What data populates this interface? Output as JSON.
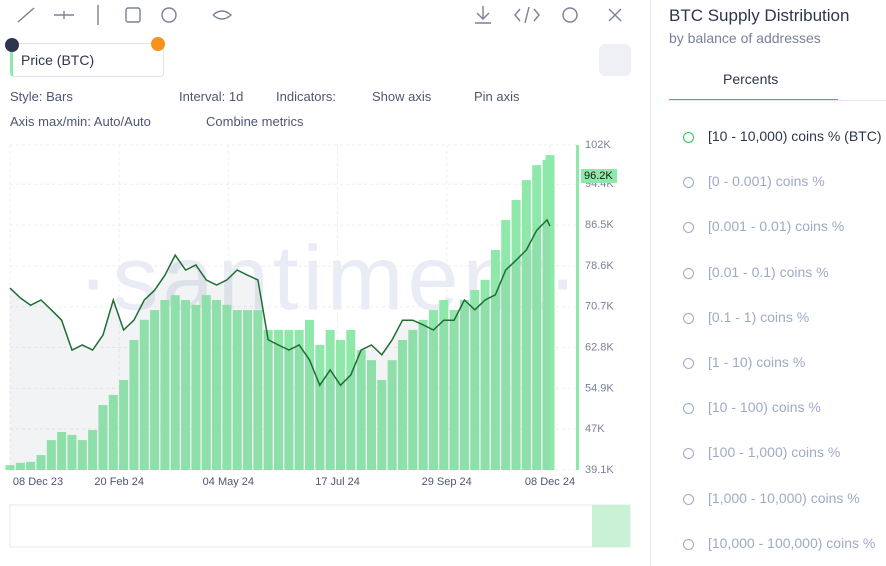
{
  "panel": {
    "metric_title": "Price (BTC)",
    "controls": {
      "style": "Style: Bars",
      "interval": "Interval: 1d",
      "indicators": "Indicators:",
      "show_axis": "Show axis",
      "pin_axis": "Pin axis",
      "axis_minmax": "Axis max/min: Auto/Auto",
      "combine": "Combine metrics"
    }
  },
  "sidebar": {
    "title": "BTC Supply Distribution",
    "subtitle": "by balance of addresses",
    "tab": "Percents",
    "items": [
      "[10 - 10,000) coins % (BTC)",
      "[0 - 0.001) coins %",
      "[0.001 - 0.01) coins %",
      "[0.01 - 0.1) coins %",
      "[0.1 - 1) coins %",
      "[1 - 10) coins %",
      "[10 - 100) coins %",
      "[100 - 1,000) coins %",
      "[1,000 - 10,000) coins %",
      "[10,000 - 100,000) coins %"
    ]
  },
  "chart_data": {
    "type": "combo",
    "watermark": "·santiment·",
    "value_tag": "96.2K",
    "x": [
      "08 Dec 23",
      "15 Dec 23",
      "22 Dec 23",
      "29 Dec 23",
      "05 Jan 24",
      "12 Jan 24",
      "19 Jan 24",
      "26 Jan 24",
      "02 Feb 24",
      "09 Feb 24",
      "16 Feb 24",
      "23 Feb 24",
      "01 Mar 24",
      "08 Mar 24",
      "15 Mar 24",
      "22 Mar 24",
      "29 Mar 24",
      "05 Apr 24",
      "12 Apr 24",
      "19 Apr 24",
      "26 Apr 24",
      "03 May 24",
      "10 May 24",
      "17 May 24",
      "24 May 24",
      "31 May 24",
      "07 Jun 24",
      "14 Jun 24",
      "21 Jun 24",
      "28 Jun 24",
      "05 Jul 24",
      "12 Jul 24",
      "19 Jul 24",
      "26 Jul 24",
      "02 Aug 24",
      "09 Aug 24",
      "16 Aug 24",
      "23 Aug 24",
      "30 Aug 24",
      "06 Sep 24",
      "13 Sep 24",
      "20 Sep 24",
      "27 Sep 24",
      "04 Oct 24",
      "11 Oct 24",
      "18 Oct 24",
      "25 Oct 24",
      "01 Nov 24",
      "08 Nov 24",
      "15 Nov 24",
      "22 Nov 24",
      "29 Nov 24",
      "06 Dec 24",
      "08 Dec 24"
    ],
    "xlim": [
      "08 Dec 23",
      "08 Dec 24"
    ],
    "xticks": [
      "08 Dec 23",
      "20 Feb 24",
      "04 May 24",
      "17 Jul 24",
      "29 Sep 24",
      "08 Dec 24"
    ],
    "series": [
      {
        "name": "[10 - 10,000) coins % (BTC)",
        "type": "bar",
        "axis": "y2",
        "color": "#8ee8a9",
        "values": [
          1.5,
          2.2,
          2.5,
          4.6,
          9.2,
          11.7,
          10.8,
          9.2,
          12.3,
          20,
          23.1,
          27.7,
          40,
          46.2,
          49.2,
          52.3,
          53.8,
          52.3,
          50.8,
          53.8,
          52.3,
          50.8,
          49.2,
          49.2,
          49.2,
          43.1,
          43.1,
          43.1,
          43.1,
          46.2,
          38.5,
          43.1,
          40,
          43.1,
          36.9,
          33.8,
          27.7,
          33.8,
          40,
          43.1,
          46.2,
          49.2,
          52.3,
          49.2,
          52.3,
          55.4,
          58.5,
          67.7,
          76.9,
          83.1,
          89.2,
          93.8,
          95.4,
          96.9
        ]
      },
      {
        "name": "Price (BTC)",
        "type": "line",
        "color": "#1f6e35",
        "values": [
          74300,
          72400,
          71000,
          72000,
          70100,
          68100,
          62300,
          63300,
          62300,
          65200,
          72000,
          66200,
          68100,
          72000,
          73900,
          76800,
          80700,
          77800,
          78800,
          75900,
          74900,
          75900,
          77800,
          76800,
          75900,
          64300,
          63300,
          62300,
          63300,
          60400,
          55500,
          58500,
          55500,
          57500,
          62300,
          63300,
          61400,
          64300,
          68100,
          68100,
          67200,
          66200,
          68100,
          68100,
          72000,
          70100,
          72000,
          73000,
          77800,
          79700,
          81700,
          85500,
          87500,
          86300
        ]
      }
    ],
    "ylim": [
      39100,
      102000
    ],
    "yticks": [
      {
        "value": 39100,
        "label": "39.1K"
      },
      {
        "value": 47000,
        "label": "47K"
      },
      {
        "value": 54900,
        "label": "54.9K"
      },
      {
        "value": 62800,
        "label": "62.8K"
      },
      {
        "value": 70700,
        "label": "70.7K"
      },
      {
        "value": 78600,
        "label": "78.6K"
      },
      {
        "value": 86500,
        "label": "86.5K"
      },
      {
        "value": 94400,
        "label": "94.4K"
      },
      {
        "value": 102000,
        "label": "102K"
      }
    ],
    "y2lim": [
      0,
      100
    ],
    "grid": true
  }
}
